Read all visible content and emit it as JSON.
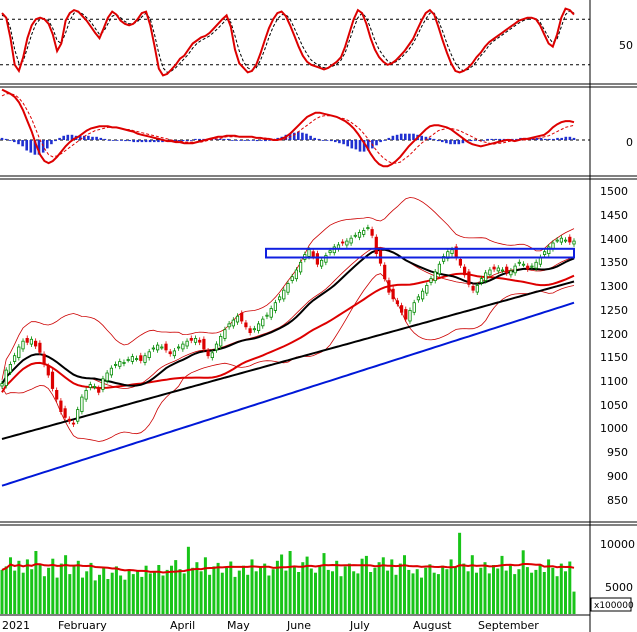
{
  "colors": {
    "stoch_line": "#dd0000",
    "signal": "#000000",
    "macd_pos": "#1f2fd0",
    "macd_neg": "#1f2fd0",
    "up_candle": "#008a00",
    "down_candle": "#dd0000",
    "bollinger": "#cc0000",
    "ma_black": "#000000",
    "ma_red": "#dd0000",
    "ma_blue": "#0018d8",
    "resistance_box": "#1020e0",
    "volume_bar": "#18c418",
    "volume_ma": "#dd0000"
  },
  "chart_data": [
    {
      "type": "line",
      "panel": "stochastic",
      "y_tick_labels": [
        "50"
      ],
      "ylim": [
        0,
        100
      ],
      "guides": [
        20,
        80
      ],
      "series": [
        {
          "values": [
            88,
            82,
            55,
            20,
            12,
            30,
            55,
            72,
            80,
            82,
            80,
            74,
            60,
            38,
            48,
            78,
            88,
            92,
            90,
            84,
            78,
            70,
            62,
            55,
            68,
            82,
            90,
            86,
            78,
            74,
            72,
            74,
            80,
            88,
            90,
            72,
            45,
            15,
            6,
            8,
            14,
            20,
            28,
            32,
            40,
            48,
            52,
            56,
            58,
            62,
            68,
            74,
            80,
            85,
            70,
            40,
            22,
            16,
            10,
            12,
            20,
            35,
            52,
            68,
            80,
            88,
            90,
            84,
            72,
            58,
            44,
            32,
            24,
            20,
            18,
            16,
            14,
            16,
            20,
            24,
            30,
            44,
            62,
            80,
            92,
            88,
            74,
            55,
            40,
            30,
            24,
            20,
            22,
            26,
            32,
            38,
            46,
            54,
            66,
            78,
            88,
            92,
            86,
            70,
            52,
            36,
            22,
            12,
            10,
            12,
            16,
            22,
            30,
            36,
            44,
            50,
            54,
            58,
            62,
            66,
            70,
            74,
            78,
            80,
            82,
            82,
            80,
            72,
            60,
            48,
            44,
            60,
            82,
            94,
            92,
            86
          ]
        },
        {
          "values": [
            85,
            83,
            68,
            40,
            22,
            25,
            42,
            60,
            74,
            80,
            81,
            78,
            68,
            52,
            48,
            62,
            78,
            88,
            90,
            87,
            82,
            76,
            68,
            60,
            64,
            74,
            84,
            86,
            82,
            77,
            74,
            74,
            77,
            83,
            88,
            80,
            60,
            35,
            16,
            10,
            12,
            16,
            22,
            28,
            34,
            42,
            48,
            52,
            55,
            58,
            63,
            68,
            74,
            80,
            76,
            58,
            38,
            24,
            16,
            13,
            16,
            26,
            40,
            56,
            70,
            80,
            86,
            86,
            80,
            68,
            56,
            44,
            34,
            26,
            22,
            18,
            16,
            16,
            18,
            21,
            26,
            36,
            52,
            68,
            82,
            88,
            82,
            68,
            52,
            40,
            32,
            25,
            22,
            24,
            28,
            34,
            40,
            48,
            58,
            70,
            80,
            88,
            88,
            78,
            64,
            48,
            34,
            22,
            15,
            12,
            14,
            18,
            24,
            32,
            38,
            46,
            51,
            55,
            59,
            63,
            67,
            71,
            75,
            78,
            80,
            81,
            81,
            76,
            66,
            56,
            49,
            54,
            70,
            86,
            91,
            88
          ]
        }
      ]
    },
    {
      "type": "line",
      "panel": "macd",
      "y_tick_labels": [
        "0"
      ],
      "series": [
        {
          "values": [
            48,
            46,
            44,
            41,
            36,
            28,
            18,
            8,
            -4,
            -14,
            -20,
            -22,
            -20,
            -16,
            -11,
            -6,
            -2,
            1,
            3,
            6,
            9,
            11,
            12,
            13,
            13,
            13,
            12,
            12,
            11,
            10,
            9,
            8,
            6,
            5,
            4,
            3,
            2,
            1,
            0,
            -1,
            -1,
            -2,
            -2,
            -3,
            -3,
            -3,
            -2,
            -1,
            0,
            1,
            2,
            3,
            3,
            4,
            4,
            4,
            3,
            3,
            3,
            3,
            2,
            2,
            1,
            1,
            0,
            0,
            1,
            3,
            6,
            10,
            14,
            18,
            22,
            24,
            26,
            26,
            25,
            24,
            23,
            22,
            20,
            18,
            15,
            11,
            6,
            0,
            -6,
            -13,
            -19,
            -23,
            -25,
            -25,
            -23,
            -20,
            -16,
            -11,
            -6,
            -2,
            2,
            6,
            10,
            13,
            14,
            14,
            13,
            12,
            10,
            7,
            4,
            1,
            -2,
            -4,
            -5,
            -6,
            -5,
            -4,
            -3,
            -2,
            -1,
            0,
            0,
            -1,
            0,
            1,
            1,
            2,
            3,
            4,
            5,
            8,
            12,
            15,
            17,
            18,
            18,
            17
          ]
        },
        {
          "values": [
            42,
            44,
            44,
            43,
            40,
            35,
            28,
            20,
            10,
            0,
            -8,
            -14,
            -16,
            -15,
            -13,
            -10,
            -7,
            -4,
            -1,
            2,
            5,
            7,
            9,
            10,
            11,
            12,
            12,
            12,
            11,
            10,
            10,
            9,
            8,
            7,
            6,
            5,
            4,
            3,
            2,
            1,
            0,
            -1,
            -1,
            -2,
            -2,
            -2,
            -2,
            -2,
            -1,
            0,
            1,
            1,
            2,
            3,
            3,
            3,
            3,
            3,
            3,
            3,
            2,
            2,
            2,
            1,
            1,
            0,
            0,
            1,
            3,
            5,
            8,
            11,
            14,
            17,
            20,
            22,
            23,
            23,
            23,
            22,
            21,
            20,
            18,
            15,
            12,
            8,
            3,
            -2,
            -8,
            -13,
            -17,
            -20,
            -22,
            -22,
            -21,
            -18,
            -15,
            -11,
            -7,
            -3,
            0,
            3,
            6,
            9,
            10,
            11,
            11,
            10,
            9,
            7,
            5,
            3,
            1,
            -1,
            -2,
            -3,
            -4,
            -3,
            -3,
            -2,
            -1,
            -1,
            0,
            0,
            0,
            1,
            1,
            2,
            3,
            4,
            6,
            8,
            10,
            12,
            13,
            14
          ]
        }
      ],
      "histogram": [
        2,
        1,
        0,
        -2,
        -4,
        -6,
        -10,
        -12,
        -14,
        -14,
        -12,
        -8,
        -4,
        -1,
        2,
        4,
        5,
        5,
        4,
        4,
        4,
        4,
        3,
        3,
        2,
        1,
        0,
        0,
        0,
        0,
        -1,
        -1,
        -2,
        -2,
        -2,
        -2,
        -2,
        -2,
        -2,
        -2,
        -1,
        -1,
        -1,
        -1,
        -1,
        -1,
        0,
        1,
        1,
        1,
        1,
        2,
        1,
        1,
        1,
        1,
        0,
        0,
        0,
        0,
        0,
        0,
        -1,
        0,
        -1,
        0,
        1,
        2,
        3,
        5,
        6,
        7,
        8,
        7,
        6,
        4,
        2,
        1,
        0,
        0,
        -1,
        -2,
        -3,
        -4,
        -6,
        -8,
        -9,
        -11,
        -11,
        -10,
        -8,
        -5,
        -2,
        0,
        2,
        4,
        5,
        6,
        6,
        6,
        6,
        5,
        4,
        3,
        2,
        1,
        -1,
        -2,
        -3,
        -4,
        -4,
        -4,
        -3,
        -2,
        -1,
        0,
        0,
        0,
        1,
        1,
        1,
        1,
        1,
        1,
        1,
        1,
        2,
        2,
        2,
        2,
        2,
        2,
        1,
        1,
        1,
        2,
        2,
        3,
        3,
        2
      ]
    },
    {
      "type": "candlestick",
      "panel": "price",
      "y_tick_labels": [
        "1500",
        "1450",
        "1400",
        "1350",
        "1300",
        "1250",
        "1200",
        "1150",
        "1100",
        "1050",
        "1000",
        "950",
        "900",
        "850"
      ],
      "ylim": [
        800,
        1510
      ],
      "resistance_zone": [
        1362,
        1380
      ],
      "close": [
        1100,
        1128,
        1140,
        1158,
        1176,
        1188,
        1186,
        1192,
        1178,
        1165,
        1140,
        1118,
        1090,
        1068,
        1042,
        1030,
        1022,
        1016,
        1046,
        1072,
        1086,
        1098,
        1094,
        1082,
        1110,
        1122,
        1132,
        1140,
        1146,
        1144,
        1150,
        1156,
        1152,
        1148,
        1158,
        1166,
        1174,
        1180,
        1176,
        1170,
        1162,
        1168,
        1176,
        1182,
        1188,
        1190,
        1194,
        1186,
        1172,
        1158,
        1164,
        1182,
        1198,
        1212,
        1224,
        1232,
        1240,
        1230,
        1218,
        1206,
        1214,
        1224,
        1234,
        1242,
        1256,
        1268,
        1280,
        1294,
        1308,
        1322,
        1336,
        1352,
        1368,
        1378,
        1364,
        1348,
        1356,
        1366,
        1376,
        1384,
        1388,
        1392,
        1396,
        1402,
        1408,
        1414,
        1418,
        1424,
        1408,
        1370,
        1350,
        1318,
        1290,
        1276,
        1266,
        1248,
        1234,
        1252,
        1268,
        1280,
        1292,
        1304,
        1318,
        1332,
        1348,
        1364,
        1374,
        1378,
        1362,
        1346,
        1326,
        1306,
        1294,
        1304,
        1318,
        1330,
        1336,
        1338,
        1340,
        1336,
        1330,
        1334,
        1344,
        1352,
        1348,
        1338,
        1344,
        1352,
        1362,
        1374,
        1384,
        1392,
        1398,
        1402,
        1398,
        1394,
        1396
      ]
    },
    {
      "type": "bar",
      "panel": "volume",
      "y_tick_labels": [
        "10000",
        "5000"
      ],
      "unit_label": "x100000",
      "ylim": [
        0,
        12000
      ],
      "values": [
        6300,
        6800,
        8100,
        6200,
        7600,
        5900,
        7800,
        6400,
        9000,
        7100,
        5400,
        6600,
        7900,
        5200,
        7200,
        8400,
        5700,
        6900,
        7600,
        5200,
        6100,
        7300,
        4800,
        5600,
        6700,
        5000,
        5900,
        6800,
        5500,
        4900,
        6400,
        5700,
        6200,
        5300,
        6900,
        5800,
        6100,
        7000,
        5500,
        6300,
        6900,
        7700,
        6400,
        5800,
        9600,
        6600,
        7400,
        6100,
        8100,
        5600,
        6800,
        7300,
        5900,
        6600,
        7500,
        5300,
        6200,
        6900,
        5600,
        7800,
        6100,
        6700,
        7200,
        5500,
        6400,
        7600,
        8500,
        6200,
        9000,
        6800,
        6000,
        7400,
        8200,
        6500,
        5900,
        7000,
        8700,
        6300,
        6100,
        7600,
        5400,
        6800,
        7200,
        6100,
        5800,
        7900,
        8300,
        6000,
        6600,
        7400,
        8100,
        6200,
        7800,
        5600,
        7200,
        8400,
        6300,
        5800,
        6400,
        5200,
        6600,
        7100,
        5900,
        5700,
        6900,
        6400,
        7800,
        6800,
        11600,
        7200,
        6100,
        8400,
        5900,
        6600,
        7400,
        5800,
        7000,
        6500,
        8300,
        6200,
        6900,
        5700,
        6400,
        9100,
        6700,
        5900,
        6300,
        7100,
        6000,
        7800,
        6600,
        5400,
        7200,
        6100,
        7500,
        3200
      ]
    }
  ],
  "x_axis": {
    "labels": [
      "2021",
      "February",
      "April",
      "May",
      "June",
      "July",
      "August",
      "September"
    ]
  }
}
